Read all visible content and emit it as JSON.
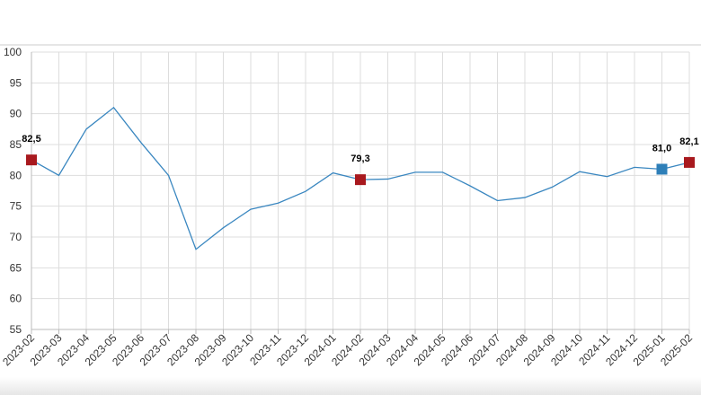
{
  "chart_data": {
    "type": "line",
    "categories": [
      "2023-02",
      "2023-03",
      "2023-04",
      "2023-05",
      "2023-06",
      "2023-07",
      "2023-08",
      "2023-09",
      "2023-10",
      "2023-11",
      "2023-12",
      "2024-01",
      "2024-02",
      "2024-03",
      "2024-04",
      "2024-05",
      "2024-06",
      "2024-07",
      "2024-08",
      "2024-09",
      "2024-10",
      "2024-11",
      "2024-12",
      "2025-01",
      "2025-02"
    ],
    "series": [
      {
        "color": "#3a87c0",
        "values": [
          82.5,
          80.0,
          87.5,
          91.0,
          85.3,
          80.0,
          68.0,
          71.5,
          74.5,
          75.5,
          77.4,
          80.4,
          79.3,
          79.4,
          80.5,
          80.5,
          78.3,
          75.9,
          76.4,
          78.1,
          80.6,
          79.8,
          81.3,
          81.0,
          82.1
        ],
        "value_labels": [
          "82,5",
          null,
          null,
          null,
          null,
          null,
          null,
          null,
          null,
          null,
          null,
          null,
          "79,3",
          null,
          null,
          null,
          null,
          null,
          null,
          null,
          null,
          null,
          null,
          "81,0",
          "82,1"
        ],
        "marker_colors": [
          "#a8191e",
          null,
          null,
          null,
          null,
          null,
          null,
          null,
          null,
          null,
          null,
          null,
          "#a8191e",
          null,
          null,
          null,
          null,
          null,
          null,
          null,
          null,
          null,
          null,
          "#2e7fb8",
          "#a8191e"
        ]
      }
    ],
    "ylim": [
      55,
      100
    ],
    "yticks": [
      55,
      60,
      65,
      70,
      75,
      80,
      85,
      90,
      95,
      100
    ],
    "grid": true
  }
}
